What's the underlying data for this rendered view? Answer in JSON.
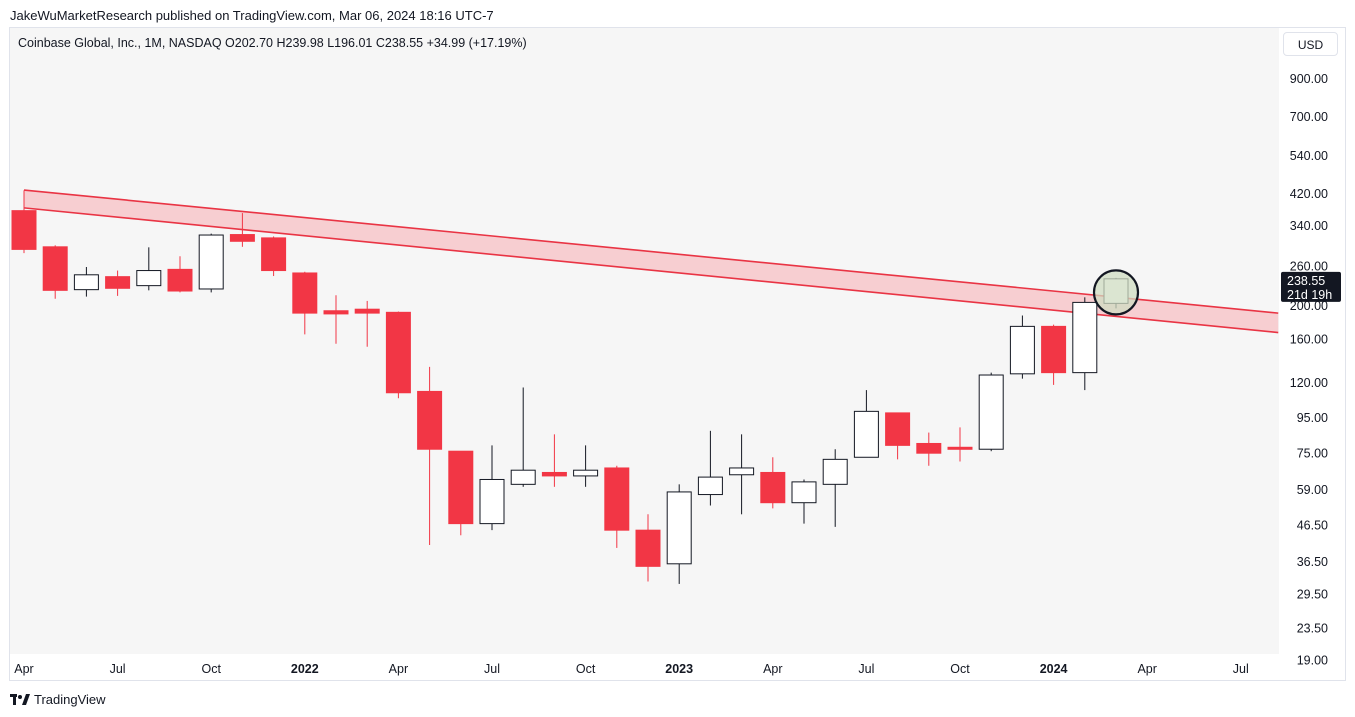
{
  "header": {
    "published": "JakeWuMarketResearch published on TradingView.com, Mar 06, 2024 18:16 UTC-7"
  },
  "legend": {
    "text": "Coinbase Global, Inc., 1M, NASDAQ  O202.70  H239.98  L196.01  C238.55  +34.99 (+17.19%)"
  },
  "currency": "USD",
  "footer": {
    "brand": "TradingView"
  },
  "price_label": {
    "price": "238.55",
    "countdown": "21d 19h"
  },
  "colors": {
    "up": "#ffffff",
    "down": "#f23645",
    "band": "#f7b9bd",
    "band_line": "#e93444",
    "circle": "#cfdcc2"
  },
  "chart_data": {
    "type": "candlestick",
    "title": "Coinbase Global, Inc., 1M, NASDAQ",
    "scale": "log",
    "ylim": [
      16,
      1100
    ],
    "y_ticks": [
      "900.00",
      "700.00",
      "540.00",
      "420.00",
      "340.00",
      "260.00",
      "200.00",
      "160.00",
      "120.00",
      "95.00",
      "75.00",
      "59.00",
      "46.50",
      "36.50",
      "29.50",
      "23.50",
      "19.00"
    ],
    "x_ticks": [
      {
        "label": "Apr",
        "index": 0,
        "bold": false
      },
      {
        "label": "Jul",
        "index": 3,
        "bold": false
      },
      {
        "label": "Oct",
        "index": 6,
        "bold": false
      },
      {
        "label": "2022",
        "index": 9,
        "bold": true
      },
      {
        "label": "Apr",
        "index": 12,
        "bold": false
      },
      {
        "label": "Jul",
        "index": 15,
        "bold": false
      },
      {
        "label": "Oct",
        "index": 18,
        "bold": false
      },
      {
        "label": "2023",
        "index": 21,
        "bold": true
      },
      {
        "label": "Apr",
        "index": 24,
        "bold": false
      },
      {
        "label": "Jul",
        "index": 27,
        "bold": false
      },
      {
        "label": "Oct",
        "index": 30,
        "bold": false
      },
      {
        "label": "2024",
        "index": 33,
        "bold": true
      },
      {
        "label": "Apr",
        "index": 36,
        "bold": false
      },
      {
        "label": "Jul",
        "index": 39,
        "bold": false
      }
    ],
    "candles": [
      {
        "m": "2021-04",
        "o": 375,
        "h": 429,
        "l": 283,
        "c": 290
      },
      {
        "m": "2021-05",
        "o": 295,
        "h": 298,
        "l": 209,
        "c": 221
      },
      {
        "m": "2021-06",
        "o": 222,
        "h": 258,
        "l": 212,
        "c": 245
      },
      {
        "m": "2021-07",
        "o": 242,
        "h": 252,
        "l": 213,
        "c": 224
      },
      {
        "m": "2021-08",
        "o": 228,
        "h": 294,
        "l": 221,
        "c": 252
      },
      {
        "m": "2021-09",
        "o": 254,
        "h": 277,
        "l": 218,
        "c": 220
      },
      {
        "m": "2021-10",
        "o": 223,
        "h": 322,
        "l": 218,
        "c": 319
      },
      {
        "m": "2021-11",
        "o": 320,
        "h": 369,
        "l": 295,
        "c": 306
      },
      {
        "m": "2021-12",
        "o": 313,
        "h": 316,
        "l": 243,
        "c": 252
      },
      {
        "m": "2022-01",
        "o": 248,
        "h": 250,
        "l": 165,
        "c": 190
      },
      {
        "m": "2022-02",
        "o": 193,
        "h": 214,
        "l": 155,
        "c": 189
      },
      {
        "m": "2022-03",
        "o": 195,
        "h": 206,
        "l": 152,
        "c": 190
      },
      {
        "m": "2022-04",
        "o": 191,
        "h": 192,
        "l": 108,
        "c": 112
      },
      {
        "m": "2022-05",
        "o": 113,
        "h": 133,
        "l": 40.8,
        "c": 77
      },
      {
        "m": "2022-06",
        "o": 76,
        "h": 76,
        "l": 43.5,
        "c": 47
      },
      {
        "m": "2022-07",
        "o": 47,
        "h": 79,
        "l": 45,
        "c": 63
      },
      {
        "m": "2022-08",
        "o": 61,
        "h": 116,
        "l": 60,
        "c": 67
      },
      {
        "m": "2022-09",
        "o": 66,
        "h": 85,
        "l": 60,
        "c": 64.5
      },
      {
        "m": "2022-10",
        "o": 64.5,
        "h": 79,
        "l": 60,
        "c": 67
      },
      {
        "m": "2022-11",
        "o": 68,
        "h": 69,
        "l": 40,
        "c": 45
      },
      {
        "m": "2022-12",
        "o": 45,
        "h": 50,
        "l": 32,
        "c": 35.4
      },
      {
        "m": "2023-01",
        "o": 36,
        "h": 61,
        "l": 31.5,
        "c": 58
      },
      {
        "m": "2023-02",
        "o": 57,
        "h": 87,
        "l": 53,
        "c": 64
      },
      {
        "m": "2023-03",
        "o": 65,
        "h": 85,
        "l": 50,
        "c": 68
      },
      {
        "m": "2023-04",
        "o": 66,
        "h": 73,
        "l": 52,
        "c": 54
      },
      {
        "m": "2023-05",
        "o": 54,
        "h": 63,
        "l": 47,
        "c": 62
      },
      {
        "m": "2023-06",
        "o": 61,
        "h": 77,
        "l": 46,
        "c": 72
      },
      {
        "m": "2023-07",
        "o": 73,
        "h": 114,
        "l": 73,
        "c": 99
      },
      {
        "m": "2023-08",
        "o": 98,
        "h": 98,
        "l": 72,
        "c": 79
      },
      {
        "m": "2023-09",
        "o": 80,
        "h": 86,
        "l": 69,
        "c": 75
      },
      {
        "m": "2023-10",
        "o": 78,
        "h": 89,
        "l": 71,
        "c": 77
      },
      {
        "m": "2023-11",
        "o": 77,
        "h": 128,
        "l": 76,
        "c": 126
      },
      {
        "m": "2023-12",
        "o": 127,
        "h": 187,
        "l": 123,
        "c": 174
      },
      {
        "m": "2024-01",
        "o": 174,
        "h": 176,
        "l": 118,
        "c": 128
      },
      {
        "m": "2024-02",
        "o": 128,
        "h": 211,
        "l": 114,
        "c": 204
      },
      {
        "m": "2024-03",
        "o": 202.7,
        "h": 239.98,
        "l": 196.01,
        "c": 238.55
      }
    ],
    "resistance_band": {
      "upper": [
        {
          "index": 0,
          "price": 430
        },
        {
          "index": 40.2,
          "price": 190
        }
      ],
      "lower": [
        {
          "index": 0,
          "price": 382
        },
        {
          "index": 40.2,
          "price": 167
        }
      ]
    },
    "highlight": {
      "index": 35,
      "price": 218
    }
  }
}
